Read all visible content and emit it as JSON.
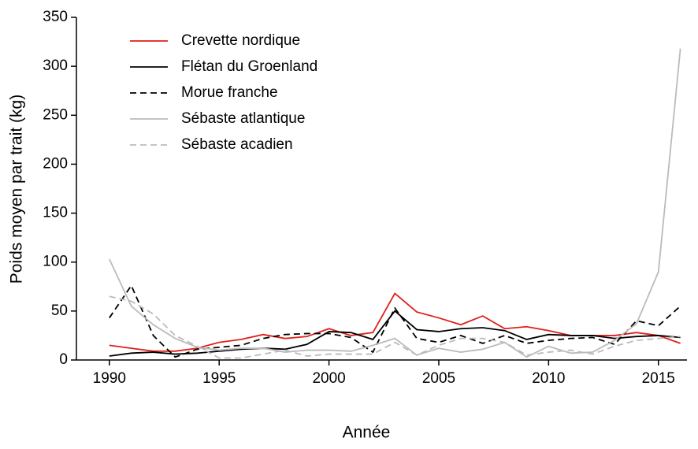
{
  "chart_data": {
    "type": "line",
    "x": [
      1990,
      1991,
      1992,
      1993,
      1994,
      1995,
      1996,
      1997,
      1998,
      1999,
      2000,
      2001,
      2002,
      2003,
      2004,
      2005,
      2006,
      2007,
      2008,
      2009,
      2010,
      2011,
      2012,
      2013,
      2014,
      2015,
      2016
    ],
    "series": [
      {
        "name": "Crevette nordique",
        "color": "#e0201a",
        "dashed": false,
        "values": [
          15,
          12,
          9,
          9,
          12,
          18,
          21,
          26,
          22,
          24,
          32,
          25,
          28,
          68,
          49,
          43,
          36,
          45,
          32,
          34,
          30,
          25,
          25,
          25,
          28,
          25,
          17
        ]
      },
      {
        "name": "Flétan du Groenland",
        "color": "#000000",
        "dashed": false,
        "values": [
          4,
          7,
          8,
          6,
          7,
          9,
          11,
          12,
          11,
          16,
          29,
          28,
          21,
          50,
          31,
          29,
          32,
          33,
          30,
          21,
          26,
          25,
          25,
          22,
          24,
          25,
          23
        ]
      },
      {
        "name": "Morue franche",
        "color": "#000000",
        "dashed": true,
        "values": [
          43,
          76,
          25,
          3,
          11,
          13,
          15,
          22,
          26,
          27,
          27,
          23,
          8,
          53,
          22,
          18,
          25,
          17,
          25,
          17,
          20,
          22,
          23,
          16,
          40,
          35,
          55
        ]
      },
      {
        "name": "Sébaste atlantique",
        "color": "#bbbbbb",
        "dashed": false,
        "values": [
          103,
          55,
          36,
          22,
          13,
          10,
          12,
          12,
          8,
          10,
          10,
          9,
          15,
          22,
          5,
          12,
          8,
          11,
          18,
          3,
          14,
          7,
          8,
          20,
          37,
          90,
          318
        ]
      },
      {
        "name": "Sébaste acadien",
        "color": "#bbbbbb",
        "dashed": true,
        "values": [
          65,
          60,
          47,
          25,
          14,
          2,
          2,
          6,
          10,
          4,
          6,
          6,
          6,
          18,
          5,
          15,
          22,
          22,
          18,
          5,
          8,
          10,
          6,
          14,
          20,
          22,
          24
        ]
      }
    ],
    "xlabel": "Année",
    "ylabel": "Poids moyen par trait (kg)",
    "xlim": [
      1988.5,
      2016.3
    ],
    "ylim": [
      0,
      350
    ],
    "xticks": [
      1990,
      1995,
      2000,
      2005,
      2010,
      2015
    ],
    "yticks": [
      0,
      50,
      100,
      150,
      200,
      250,
      300,
      350
    ],
    "legend": "upper left"
  }
}
